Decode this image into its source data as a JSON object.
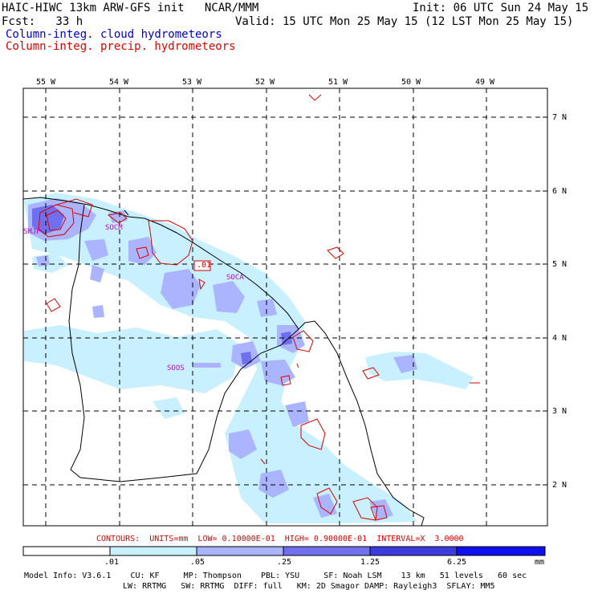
{
  "header": {
    "model": "HAIC-HIWC 13km ARW-GFS init   NCAR/MMM",
    "init": "Init: 06 UTC Sun 24 May 15",
    "fcst": "Fcst:   33 h",
    "valid": "Valid: 15 UTC Mon 25 May 15 (12 LST Mon 25 May 15)",
    "field_blue": "Column-integ. cloud hydrometeors",
    "field_red": "Column-integ. precip. hydrometeors",
    "color_blue": "#0000cc",
    "color_red": "#dd0000"
  },
  "map": {
    "lon_labels": [
      "55 W",
      "54 W",
      "53 W",
      "52 W",
      "51 W",
      "50 W",
      "49 W"
    ],
    "lat_labels": [
      "7 N",
      "6 N",
      "5 N",
      "4 N",
      "3 N",
      "2 N"
    ],
    "stations": [
      "SMJP",
      "SOCM",
      "SOCA",
      "SOOS"
    ],
    "contour_label": ".01",
    "contour_color": "#dd0000",
    "coast_color": "#000000"
  },
  "contours": {
    "info": "CONTOURS:  UNITS=mm  LOW= 0.10000E-01  HIGH= 0.90000E-01  INTERVAL=X  3.0000"
  },
  "colorbar": {
    "ticks": [
      ".01",
      ".05",
      ".25",
      "1.25",
      "6.25"
    ],
    "units": "mm",
    "colors": [
      "#ffffff",
      "#c8f0ff",
      "#aab4ff",
      "#7070ee",
      "#3c3cdc",
      "#1010f0"
    ]
  },
  "model_info": {
    "line1": "Model Info: V3.6.1    CU: KF     MP: Thompson    PBL: YSU     SF: Noah LSM    13 km   51 levels   60 sec",
    "line2": "LW: RRTMG   SW: RRTMG  DIFF: full   KM: 2D Smagor DAMP: Rayleigh3  SFLAY: MM5"
  }
}
